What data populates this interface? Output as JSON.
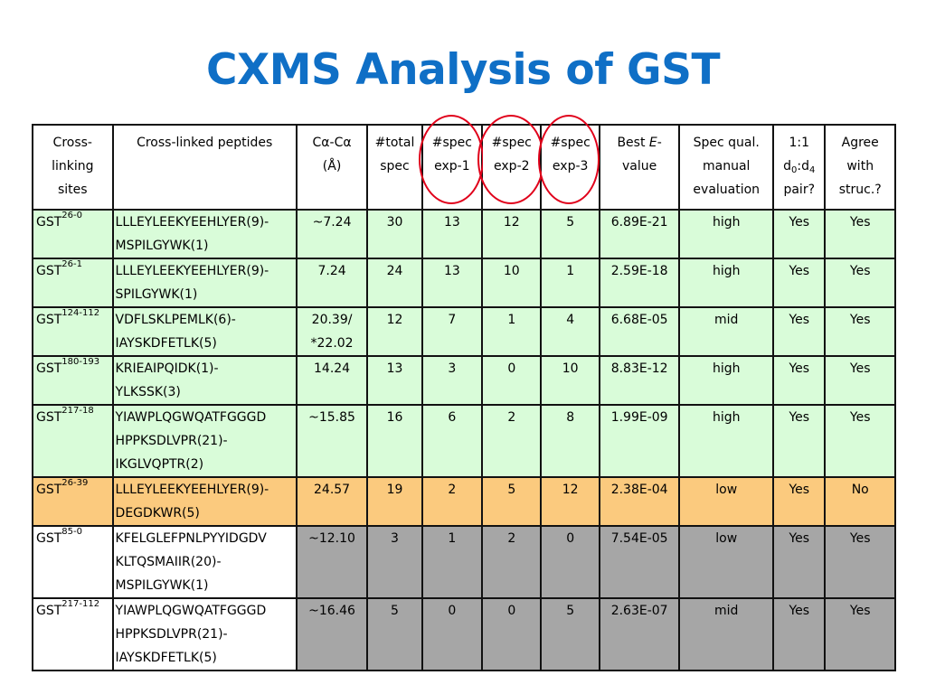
{
  "title": "CXMS  Analysis of GST",
  "headers": {
    "sites": [
      "Cross-",
      "linking",
      "sites"
    ],
    "peptides": "Cross-linked peptides",
    "ca": [
      "Cα-Cα",
      "(Å)"
    ],
    "total": [
      "#total",
      "spec"
    ],
    "exp1": [
      "#spec",
      "exp-1"
    ],
    "exp2": [
      "#spec",
      "exp-2"
    ],
    "exp3": [
      "#spec",
      "exp-3"
    ],
    "best": [
      "Best ",
      "E",
      "-",
      "value"
    ],
    "qual": [
      "Spec qual.",
      "manual",
      "evaluation"
    ],
    "pair": [
      "1:1",
      "d",
      "0",
      ":d",
      "4",
      "pair?"
    ],
    "agree": [
      "Agree",
      "with",
      "struc.?"
    ]
  },
  "rows": [
    {
      "site": "GST",
      "site_sup": "26-0",
      "pep": [
        "LLLEYLEEKYEEHLYER(9)-",
        "MSPILGYWK(1)"
      ],
      "ca": [
        "~7.24"
      ],
      "total": "30",
      "exp1": "13",
      "exp2": "12",
      "exp3": "5",
      "evalue": "6.89E-21",
      "qual": "high",
      "pair": "Yes",
      "agree": "Yes",
      "color": "green"
    },
    {
      "site": "GST",
      "site_sup": "26-1",
      "pep": [
        "LLLEYLEEKYEEHLYER(9)-",
        "SPILGYWK(1)"
      ],
      "ca": [
        "7.24"
      ],
      "total": "24",
      "exp1": "13",
      "exp2": "10",
      "exp3": "1",
      "evalue": "2.59E-18",
      "qual": "high",
      "pair": "Yes",
      "agree": "Yes",
      "color": "green"
    },
    {
      "site": "GST",
      "site_sup": "124-112",
      "pep": [
        "VDFLSKLPEMLK(6)-",
        "IAYSKDFETLK(5)"
      ],
      "ca": [
        "20.39/",
        "*22.02"
      ],
      "total": "12",
      "exp1": "7",
      "exp2": "1",
      "exp3": "4",
      "evalue": "6.68E-05",
      "qual": "mid",
      "pair": "Yes",
      "agree": "Yes",
      "color": "green"
    },
    {
      "site": "GST",
      "site_sup": "180-193",
      "pep": [
        "KRIEAIPQIDK(1)-",
        "YLKSSK(3)"
      ],
      "ca": [
        "14.24"
      ],
      "total": "13",
      "exp1": "3",
      "exp2": "0",
      "exp3": "10",
      "evalue": "8.83E-12",
      "qual": "high",
      "pair": "Yes",
      "agree": "Yes",
      "color": "green"
    },
    {
      "site": "GST",
      "site_sup": "217-18",
      "pep": [
        "YIAWPLQGWQATFGGGD",
        "HPPKSDLVPR(21)-",
        "IKGLVQPTR(2)"
      ],
      "ca": [
        "~15.85"
      ],
      "total": "16",
      "exp1": "6",
      "exp2": "2",
      "exp3": "8",
      "evalue": "1.99E-09",
      "qual": "high",
      "pair": "Yes",
      "agree": "Yes",
      "color": "green"
    },
    {
      "site": "GST",
      "site_sup": "26-39",
      "pep": [
        "LLLEYLEEKYEEHLYER(9)-",
        "DEGDKWR(5)"
      ],
      "ca": [
        "24.57"
      ],
      "total": "19",
      "exp1": "2",
      "exp2": "5",
      "exp3": "12",
      "evalue": "2.38E-04",
      "qual": "low",
      "pair": "Yes",
      "agree": "No",
      "color": "orange"
    },
    {
      "site": "GST",
      "site_sup": "85-0",
      "pep": [
        "KFELGLEFPNLPYYIDGDV",
        "KLTQSMAIIR(20)-",
        "MSPILGYWK(1)"
      ],
      "ca": [
        "~12.10"
      ],
      "total": "3",
      "exp1": "1",
      "exp2": "2",
      "exp3": "0",
      "evalue": "7.54E-05",
      "qual": "low",
      "pair": "Yes",
      "agree": "Yes",
      "color": "gray"
    },
    {
      "site": "GST",
      "site_sup": "217-112",
      "pep": [
        "YIAWPLQGWQATFGGGD",
        "HPPKSDLVPR(21)-",
        "IAYSKDFETLK(5)"
      ],
      "ca": [
        "~16.46"
      ],
      "total": "5",
      "exp1": "0",
      "exp2": "0",
      "exp3": "5",
      "evalue": "2.63E-07",
      "qual": "mid",
      "pair": "Yes",
      "agree": "Yes",
      "color": "gray"
    }
  ],
  "colors": {
    "title": "#0f6fc6",
    "row_green": "#d9fcd9",
    "row_orange": "#fbca7e",
    "row_gray": "#a6a6a6",
    "highlight_ring": "#e0001a"
  }
}
